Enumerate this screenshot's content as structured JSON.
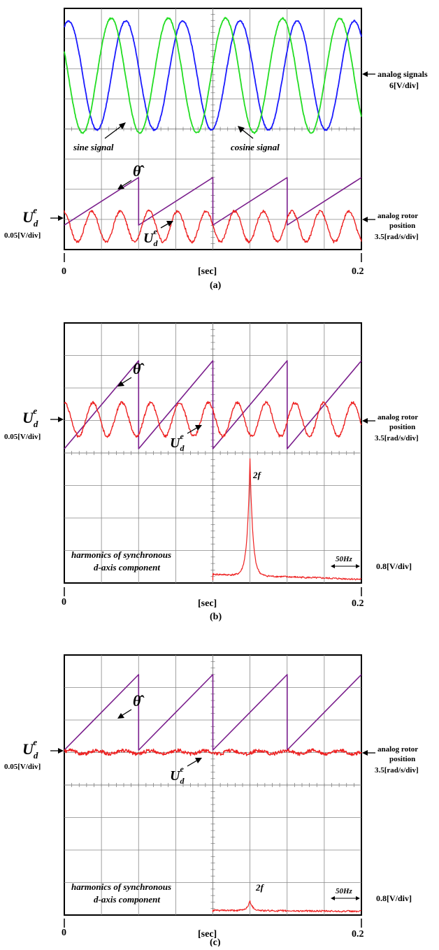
{
  "panels": [
    {
      "id": "a",
      "caption": "(a)",
      "x_start": "0",
      "x_end": "0.2",
      "x_unit": "[sec]",
      "right_upper_label": [
        "analog signals",
        "6[V/div]"
      ],
      "right_lower_label": [
        "analog rotor",
        "position",
        "3.5[rad/s/div]"
      ],
      "left_symbol": "U",
      "left_sub": "d",
      "left_sup": "e",
      "left_scale": "0.05[V/div]",
      "annotations": {
        "sine": "sine signal",
        "cosine": "cosine signal",
        "theta": "θ̂",
        "ud_symbol": "U",
        "ud_sub": "d",
        "ud_sup": "e"
      }
    },
    {
      "id": "b",
      "caption": "(b)",
      "x_start": "0",
      "x_end": "0.2",
      "x_unit": "[sec]",
      "right_upper_label": [
        "analog rotor",
        "position",
        "3.5[rad/s/div]"
      ],
      "right_lower_label": [
        "0.8[V/div]"
      ],
      "left_symbol": "U",
      "left_sub": "d",
      "left_sup": "e",
      "left_scale": "0.05[V/div]",
      "annotations": {
        "theta": "θ̂",
        "ud_symbol": "U",
        "ud_sub": "d",
        "ud_sup": "e",
        "harmonics": [
          "harmonics of synchronous",
          "d-axis component"
        ],
        "peak": "2f",
        "freq_scale": "50Hz"
      }
    },
    {
      "id": "c",
      "caption": "(c)",
      "x_start": "0",
      "x_end": "0.2",
      "x_unit": "[sec]",
      "right_upper_label": [
        "analog rotor",
        "position",
        "3.5[rad/s/div]"
      ],
      "right_lower_label": [
        "0.8[V/div]"
      ],
      "left_symbol": "U",
      "left_sub": "d",
      "left_sup": "e",
      "left_scale": "0.05[V/div]",
      "annotations": {
        "theta": "θ̂",
        "ud_symbol": "U",
        "ud_sub": "d",
        "ud_sup": "e",
        "harmonics": [
          "harmonics of synchronous",
          "d-axis component"
        ],
        "peak": "2f",
        "freq_scale": "50Hz"
      }
    }
  ],
  "chart_data": [
    {
      "type": "line",
      "panel": "a",
      "x_range": [
        0,
        0.2
      ],
      "grid": true,
      "series": [
        {
          "name": "sine signal",
          "kind": "sine",
          "cycles": 5.2,
          "phase": 1.1,
          "colour": "#1a1aff"
        },
        {
          "name": "cosine signal",
          "kind": "sine",
          "cycles": 5.2,
          "phase": 2.7,
          "colour": "#22dd22"
        },
        {
          "name": "θ̂",
          "kind": "sawtooth",
          "periods": 4,
          "colour": "#7a1e8c"
        },
        {
          "name": "U_d^e",
          "kind": "sine",
          "cycles": 10.4,
          "phase": 1.8,
          "colour": "#ee2222"
        }
      ]
    },
    {
      "type": "line",
      "panel": "b",
      "x_range": [
        0,
        0.2
      ],
      "grid": true,
      "series": [
        {
          "name": "θ̂",
          "kind": "sawtooth",
          "periods": 4,
          "colour": "#7a1e8c"
        },
        {
          "name": "U_d^e",
          "kind": "sine",
          "cycles": 10.3,
          "phase": 1.6,
          "colour": "#ee2222"
        },
        {
          "name": "harmonics of synchronous d-axis component",
          "kind": "spectrum",
          "peak_relative_height": 0.95,
          "colour": "#ee2222"
        }
      ]
    },
    {
      "type": "line",
      "panel": "c",
      "x_range": [
        0,
        0.2
      ],
      "grid": true,
      "series": [
        {
          "name": "θ̂",
          "kind": "sawtooth",
          "periods": 4,
          "colour": "#7a1e8c"
        },
        {
          "name": "U_d^e",
          "kind": "flat",
          "colour": "#ee2222"
        },
        {
          "name": "harmonics of synchronous d-axis component",
          "kind": "spectrum",
          "peak_relative_height": 0.08,
          "colour": "#ee2222"
        }
      ]
    }
  ]
}
